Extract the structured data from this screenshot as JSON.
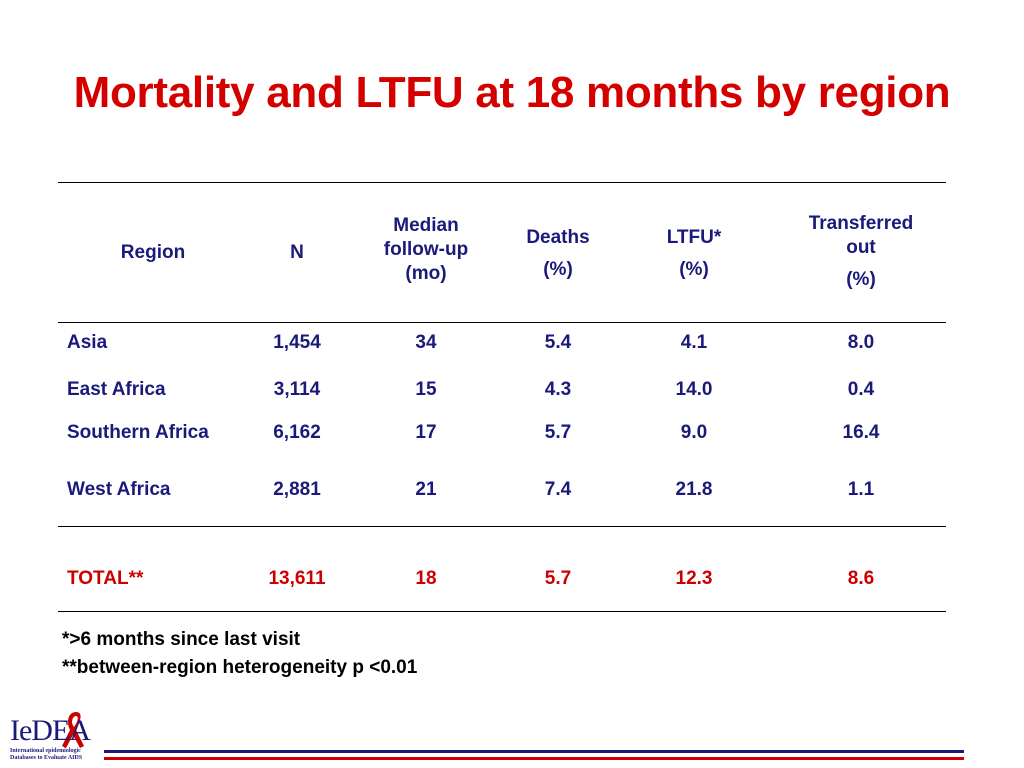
{
  "title": "Mortality and LTFU at 18 months by region",
  "table": {
    "headers": {
      "region": "Region",
      "n": "N",
      "followup": [
        "Median",
        "follow-up",
        "(mo)"
      ],
      "deaths": [
        "Deaths",
        "(%)"
      ],
      "ltfu": [
        "LTFU*",
        "(%)"
      ],
      "transferred": [
        "Transferred",
        "out",
        "(%)"
      ]
    },
    "rows": [
      {
        "region": "Asia",
        "n": "1,454",
        "followup": "34",
        "deaths": "5.4",
        "ltfu": "4.1",
        "transferred": "8.0"
      },
      {
        "region": "East Africa",
        "n": "3,114",
        "followup": "15",
        "deaths": "4.3",
        "ltfu": "14.0",
        "transferred": "0.4"
      },
      {
        "region": "Southern Africa",
        "n": "6,162",
        "followup": "17",
        "deaths": "5.7",
        "ltfu": "9.0",
        "transferred": "16.4"
      },
      {
        "region": "West Africa",
        "n": "2,881",
        "followup": "21",
        "deaths": "7.4",
        "ltfu": "21.8",
        "transferred": "1.1"
      }
    ],
    "total": {
      "region": "TOTAL**",
      "n": "13,611",
      "followup": "18",
      "deaths": "5.7",
      "ltfu": "12.3",
      "transferred": "8.6"
    }
  },
  "footnotes": [
    "*>6 months since last visit",
    "**between-region heterogeneity p <0.01"
  ],
  "logo": {
    "wordmark": "IeDEA",
    "line1": "International epidemiologic",
    "line2": "Databases to Evaluate AIDS"
  },
  "colors": {
    "title": "#d40000",
    "text": "#1a1a7a",
    "total": "#cc0000"
  }
}
